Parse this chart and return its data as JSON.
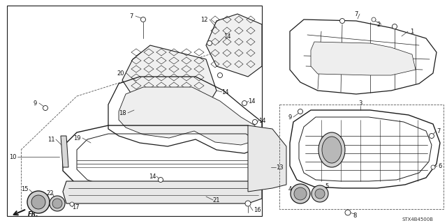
{
  "bg_color": "#ffffff",
  "diagram_code": "STX4B4500B",
  "fig_width": 6.4,
  "fig_height": 3.2,
  "dpi": 100,
  "line_color": "#1a1a1a",
  "text_color": "#111111",
  "label_fontsize": 6.0,
  "note_fontsize": 5.5
}
